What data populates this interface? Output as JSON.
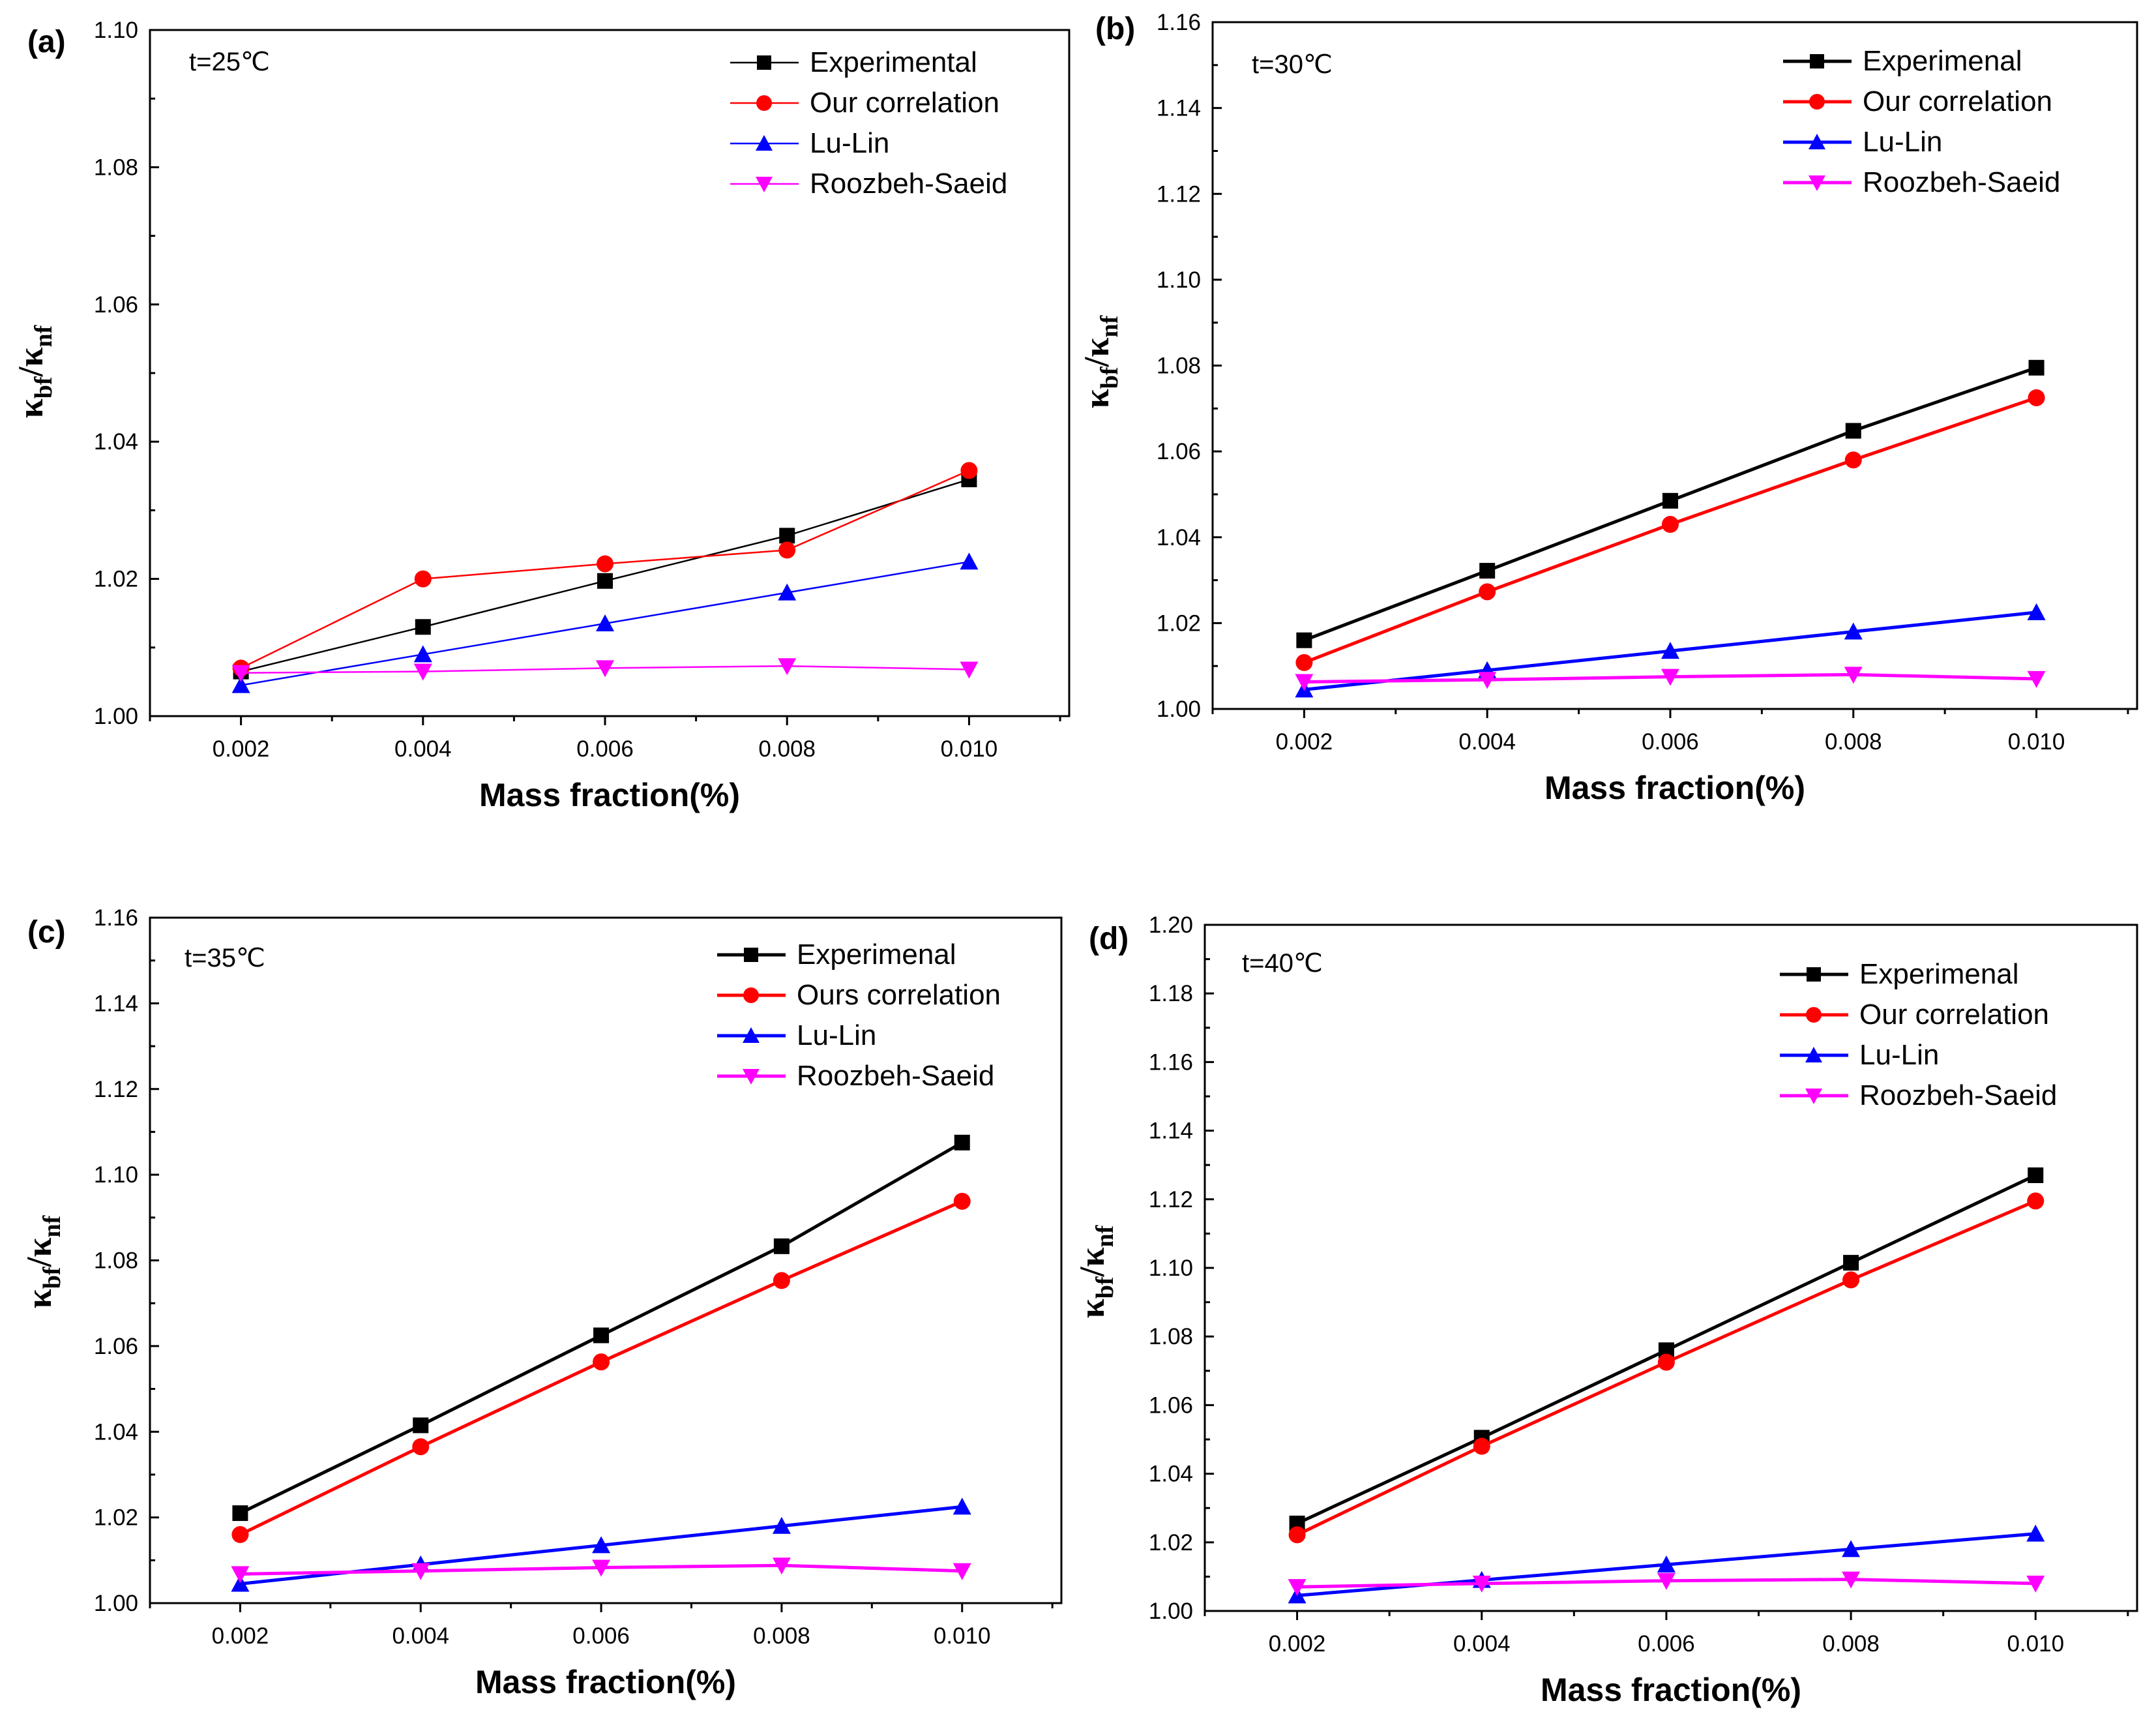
{
  "chart_data": [
    {
      "type": "line",
      "panel_label": "(a)",
      "annotation": "t=25℃",
      "xlabel": "Mass fraction(%)",
      "ylabel_base": "κ",
      "ylabel_sub1": "bf",
      "ylabel_sep": "/κ",
      "ylabel_sub2": "nf",
      "x": [
        0.002,
        0.004,
        0.006,
        0.008,
        0.01
      ],
      "x_tick_labels": [
        "0.002",
        "0.004",
        "0.006",
        "0.008",
        "0.010"
      ],
      "xlim": [
        0.001,
        0.0111
      ],
      "ylim": [
        1.0,
        1.1
      ],
      "y_ticks": [
        1.0,
        1.02,
        1.04,
        1.06,
        1.08,
        1.1
      ],
      "y_tick_labels": [
        "1.00",
        "1.02",
        "1.04",
        "1.06",
        "1.08",
        "1.10"
      ],
      "legend_position": "top-right",
      "series": [
        {
          "name": "Experimental",
          "color": "#000000",
          "marker": "square",
          "values": [
            1.0065,
            1.013,
            1.0197,
            1.0263,
            1.0345
          ]
        },
        {
          "name": "Our correlation",
          "color": "#ff0000",
          "marker": "circle",
          "values": [
            1.007,
            1.02,
            1.0222,
            1.0242,
            1.0358
          ]
        },
        {
          "name": "Lu-Lin",
          "color": "#0000ff",
          "marker": "triangle-up",
          "values": [
            1.0045,
            1.009,
            1.0135,
            1.018,
            1.0225
          ]
        },
        {
          "name": "Roozbeh-Saeid",
          "color": "#ff00ff",
          "marker": "triangle-down",
          "values": [
            1.0063,
            1.0065,
            1.007,
            1.0073,
            1.0068
          ]
        }
      ]
    },
    {
      "type": "line",
      "panel_label": "(b)",
      "annotation": "t=30℃",
      "xlabel": "Mass fraction(%)",
      "ylabel_base": "κ",
      "ylabel_sub1": "bf",
      "ylabel_sep": "/κ",
      "ylabel_sub2": "nf",
      "x": [
        0.002,
        0.004,
        0.006,
        0.008,
        0.01
      ],
      "x_tick_labels": [
        "0.002",
        "0.004",
        "0.006",
        "0.008",
        "0.010"
      ],
      "xlim": [
        0.001,
        0.0111
      ],
      "ylim": [
        1.0,
        1.16
      ],
      "y_ticks": [
        1.0,
        1.02,
        1.04,
        1.06,
        1.08,
        1.1,
        1.12,
        1.14,
        1.16
      ],
      "y_tick_labels": [
        "1.00",
        "1.02",
        "1.04",
        "1.06",
        "1.08",
        "1.10",
        "1.12",
        "1.14",
        "1.16"
      ],
      "legend_position": "top-right",
      "series": [
        {
          "name": "Experimenal",
          "color": "#000000",
          "marker": "square",
          "values": [
            1.016,
            1.0322,
            1.0485,
            1.0648,
            1.0795
          ]
        },
        {
          "name": "Our correlation",
          "color": "#ff0000",
          "marker": "circle",
          "values": [
            1.0108,
            1.0273,
            1.043,
            1.058,
            1.0725
          ]
        },
        {
          "name": "Lu-Lin",
          "color": "#0000ff",
          "marker": "triangle-up",
          "values": [
            1.0045,
            1.009,
            1.0135,
            1.018,
            1.0225
          ]
        },
        {
          "name": "Roozbeh-Saeid",
          "color": "#ff00ff",
          "marker": "triangle-down",
          "values": [
            1.0063,
            1.0068,
            1.0075,
            1.008,
            1.007
          ]
        }
      ]
    },
    {
      "type": "line",
      "panel_label": "(c)",
      "annotation": "t=35℃",
      "xlabel": "Mass fraction(%)",
      "ylabel_base": "κ",
      "ylabel_sub1": "bf",
      "ylabel_sep": "/κ",
      "ylabel_sub2": "nf",
      "x": [
        0.002,
        0.004,
        0.006,
        0.008,
        0.01
      ],
      "x_tick_labels": [
        "0.002",
        "0.004",
        "0.006",
        "0.008",
        "0.010"
      ],
      "xlim": [
        0.001,
        0.0111
      ],
      "ylim": [
        1.0,
        1.16
      ],
      "y_ticks": [
        1.0,
        1.02,
        1.04,
        1.06,
        1.08,
        1.1,
        1.12,
        1.14,
        1.16
      ],
      "y_tick_labels": [
        "1.00",
        "1.02",
        "1.04",
        "1.06",
        "1.08",
        "1.10",
        "1.12",
        "1.14",
        "1.16"
      ],
      "legend_position": "top-right",
      "series": [
        {
          "name": "Experimenal",
          "color": "#000000",
          "marker": "square",
          "values": [
            1.021,
            1.0415,
            1.0625,
            1.0833,
            1.1075
          ]
        },
        {
          "name": "Ours correlation",
          "color": "#ff0000",
          "marker": "circle",
          "values": [
            1.016,
            1.0365,
            1.0563,
            1.0753,
            1.0938
          ]
        },
        {
          "name": "Lu-Lin",
          "color": "#0000ff",
          "marker": "triangle-up",
          "values": [
            1.0045,
            1.009,
            1.0135,
            1.018,
            1.0225
          ]
        },
        {
          "name": "Roozbeh-Saeid",
          "color": "#ff00ff",
          "marker": "triangle-down",
          "values": [
            1.0068,
            1.0075,
            1.0083,
            1.0088,
            1.0075
          ]
        }
      ]
    },
    {
      "type": "line",
      "panel_label": "(d)",
      "annotation": "t=40℃",
      "xlabel": "Mass fraction(%)",
      "ylabel_base": "κ",
      "ylabel_sub1": "bf",
      "ylabel_sep": "/κ",
      "ylabel_sub2": "nf",
      "x": [
        0.002,
        0.004,
        0.006,
        0.008,
        0.01
      ],
      "x_tick_labels": [
        "0.002",
        "0.004",
        "0.006",
        "0.008",
        "0.010"
      ],
      "xlim": [
        0.001,
        0.0111
      ],
      "ylim": [
        1.0,
        1.2
      ],
      "y_ticks": [
        1.0,
        1.02,
        1.04,
        1.06,
        1.08,
        1.1,
        1.12,
        1.14,
        1.16,
        1.18,
        1.2
      ],
      "y_tick_labels": [
        "1.00",
        "1.02",
        "1.04",
        "1.06",
        "1.08",
        "1.10",
        "1.12",
        "1.14",
        "1.16",
        "1.18",
        "1.20"
      ],
      "legend_position": "top-right",
      "series": [
        {
          "name": "Experimenal",
          "color": "#000000",
          "marker": "square",
          "values": [
            1.0255,
            1.0505,
            1.076,
            1.1015,
            1.127
          ]
        },
        {
          "name": "Our correlation",
          "color": "#ff0000",
          "marker": "circle",
          "values": [
            1.0222,
            1.048,
            1.0725,
            1.0965,
            1.1195
          ]
        },
        {
          "name": "Lu-Lin",
          "color": "#0000ff",
          "marker": "triangle-up",
          "values": [
            1.0045,
            1.009,
            1.0135,
            1.018,
            1.0225
          ]
        },
        {
          "name": "Roozbeh-Saeid",
          "color": "#ff00ff",
          "marker": "triangle-down",
          "values": [
            1.007,
            1.008,
            1.0088,
            1.0092,
            1.008
          ]
        }
      ]
    }
  ]
}
